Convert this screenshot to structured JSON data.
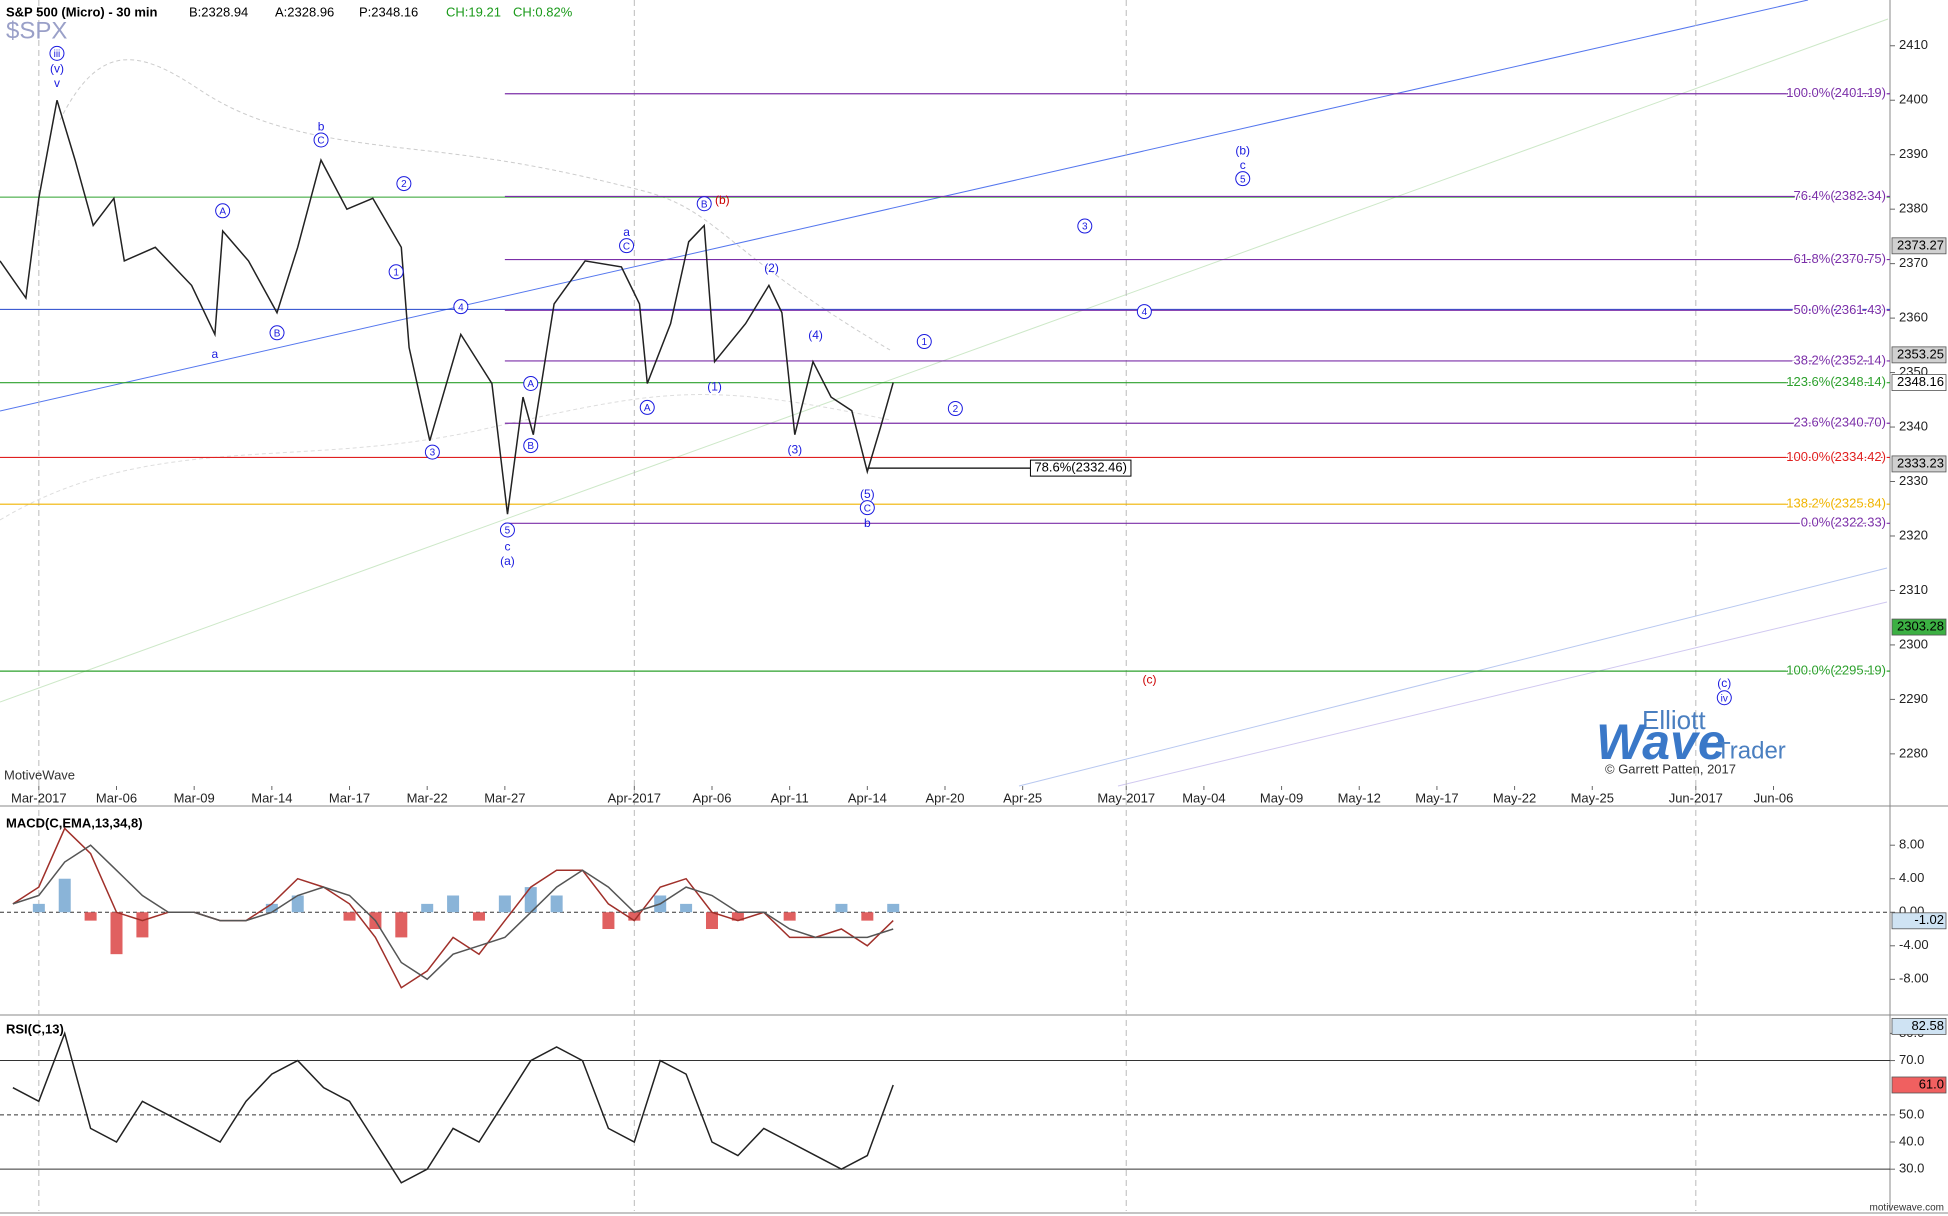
{
  "chart_data": [
    {
      "type": "price",
      "title": "S&P 500 (Micro) - 30 min",
      "subtitle": "$SPX",
      "quote": [
        {
          "text": "B:2328.94",
          "color": "#000000"
        },
        {
          "text": "A:2328.96",
          "color": "#000000"
        },
        {
          "text": "P:2348.16",
          "color": "#000000"
        },
        {
          "text": "CH:19.21",
          "color": "#1a9a1a"
        },
        {
          "text": "CH:0.82%",
          "color": "#1a9a1a"
        }
      ],
      "platform": "MotiveWave",
      "xlim": [
        -1.5,
        71.5
      ],
      "xticks": [
        {
          "value": 0,
          "label": "Mar-2017"
        },
        {
          "value": 3,
          "label": "Mar-06"
        },
        {
          "value": 6,
          "label": "Mar-09"
        },
        {
          "value": 9,
          "label": "Mar-14"
        },
        {
          "value": 12,
          "label": "Mar-17"
        },
        {
          "value": 15,
          "label": "Mar-22"
        },
        {
          "value": 18,
          "label": "Mar-27"
        },
        {
          "value": 23,
          "label": "Apr-2017"
        },
        {
          "value": 26,
          "label": "Apr-06"
        },
        {
          "value": 29,
          "label": "Apr-11"
        },
        {
          "value": 32,
          "label": "Apr-14"
        },
        {
          "value": 35,
          "label": "Apr-20"
        },
        {
          "value": 38,
          "label": "Apr-25"
        },
        {
          "value": 42,
          "label": "May-2017"
        },
        {
          "value": 45,
          "label": "May-04"
        },
        {
          "value": 48,
          "label": "May-09"
        },
        {
          "value": 51,
          "label": "May-12"
        },
        {
          "value": 54,
          "label": "May-17"
        },
        {
          "value": 57,
          "label": "May-22"
        },
        {
          "value": 60,
          "label": "May-25"
        },
        {
          "value": 64,
          "label": "Jun-2017"
        },
        {
          "value": 67,
          "label": "Jun-06"
        }
      ],
      "ylim": [
        2274.1,
        2418.4
      ],
      "yticks": [
        2280,
        2290,
        2300,
        2310,
        2320,
        2330,
        2340,
        2350,
        2360,
        2370,
        2380,
        2390,
        2400,
        2410
      ],
      "series": [
        {
          "color": "#222222",
          "x": [
            -1.5,
            -0.5,
            0,
            0.7,
            1.4,
            2.1,
            2.9,
            3.3,
            4.5,
            5.9,
            6.8,
            7.1,
            8.1,
            9.2,
            10,
            10.9,
            11.9,
            12.9,
            14,
            14.3,
            15.1,
            16.3,
            17.5,
            18.1,
            18.7,
            19.1,
            19.9,
            21.1,
            22.5,
            23.2,
            23.5,
            24.4,
            25.1,
            25.7,
            26.1,
            27.3,
            28.2,
            28.7,
            29.2,
            29.9,
            30.6,
            31.4,
            32,
            32.5,
            33
          ],
          "values": [
            2370.5,
            2363.7,
            2382,
            2400,
            2389,
            2377,
            2382,
            2370.5,
            2373,
            2366,
            2357,
            2376,
            2370.5,
            2361,
            2373,
            2389,
            2380,
            2382,
            2373,
            2354.6,
            2337.5,
            2357,
            2348,
            2324,
            2345.5,
            2338.6,
            2362.6,
            2370.5,
            2369.4,
            2362.6,
            2348,
            2359,
            2374,
            2377,
            2352,
            2359,
            2366,
            2361,
            2338.6,
            2352,
            2345.5,
            2343,
            2331.8,
            2339.8,
            2348.16
          ]
        }
      ],
      "levels": [
        {
          "label": "100.0%(2401.19)",
          "value": 2401.19,
          "color": "#7b2fa8",
          "x0": 18
        },
        {
          "label": "76.4%(2382.34)",
          "value": 2382.34,
          "color": "#7b2fa8",
          "x0": 18
        },
        {
          "label": "61.8%(2370.75)",
          "value": 2370.75,
          "color": "#7b2fa8",
          "x0": 18
        },
        {
          "label": "50.0%(2361.43)",
          "value": 2361.43,
          "color": "#7b2fa8",
          "x0": 18
        },
        {
          "label": "38.2%(2352.14)",
          "value": 2352.14,
          "color": "#7b2fa8",
          "x0": 18
        },
        {
          "label": "23.6%(2340.70)",
          "value": 2340.7,
          "color": "#7b2fa8",
          "x0": 18
        },
        {
          "label": "0.0%(2322.33)",
          "value": 2322.33,
          "color": "#7b2fa8",
          "x0": 18
        },
        {
          "label": "123.6%(2348.14)",
          "value": 2348.14,
          "color": "#2ca02c"
        },
        {
          "label": "100.0%(2295.19)",
          "value": 2295.19,
          "color": "#2ca02c"
        },
        {
          "label": "100.0%(2334.42)",
          "value": 2334.42,
          "color": "#e02020"
        },
        {
          "label": "138.2%(2325.84)",
          "value": 2325.84,
          "color": "#f0b400"
        },
        {
          "label": "78.6%(2332.46)",
          "value": 2332.46,
          "color": "#000000",
          "x0": 32,
          "x1": 38.3,
          "boxed": true
        }
      ],
      "lines": [
        {
          "value": 2382.2,
          "color": "#2ca02c"
        },
        {
          "value": 2361.6,
          "color": "#2244cc"
        }
      ],
      "markers": [
        {
          "value": 2373.27,
          "color": "#d0d0d0"
        },
        {
          "value": 2353.25,
          "color": "#d0d0d0"
        },
        {
          "value": 2348.16,
          "color": "#ffffff"
        },
        {
          "value": 2333.23,
          "color": "#d0d0d0"
        },
        {
          "value": 2303.28,
          "color": "#3cb043"
        }
      ],
      "annotations": [
        {
          "text": "iii",
          "x": 0.7,
          "y": 2408.6,
          "color": "#1a1adf",
          "circle": true
        },
        {
          "text": "(v)",
          "x": 0.7,
          "y": 2405.9,
          "color": "#1a1adf"
        },
        {
          "text": "v",
          "x": 0.7,
          "y": 2403.2,
          "color": "#1a1adf"
        },
        {
          "text": "A",
          "x": 7.1,
          "y": 2379.7,
          "color": "#1a1adf",
          "circle": true
        },
        {
          "text": "a",
          "x": 6.8,
          "y": 2353.4,
          "color": "#1a1adf"
        },
        {
          "text": "B",
          "x": 9.2,
          "y": 2357.3,
          "color": "#1a1adf",
          "circle": true
        },
        {
          "text": "b",
          "x": 10.9,
          "y": 2395.2,
          "color": "#1a1adf"
        },
        {
          "text": "C",
          "x": 10.9,
          "y": 2392.7,
          "color": "#1a1adf",
          "circle": true
        },
        {
          "text": "2",
          "x": 14.1,
          "y": 2384.7,
          "color": "#1a1adf",
          "circle": true
        },
        {
          "text": "1",
          "x": 13.8,
          "y": 2368.5,
          "color": "#1a1adf",
          "circle": true
        },
        {
          "text": "4",
          "x": 16.3,
          "y": 2362.1,
          "color": "#1a1adf",
          "circle": true
        },
        {
          "text": "3",
          "x": 15.2,
          "y": 2335.4,
          "color": "#1a1adf",
          "circle": true
        },
        {
          "text": "A",
          "x": 19.0,
          "y": 2348.0,
          "color": "#1a1adf",
          "circle": true
        },
        {
          "text": "B",
          "x": 19.0,
          "y": 2336.6,
          "color": "#1a1adf",
          "circle": true
        },
        {
          "text": "5",
          "x": 18.1,
          "y": 2321.1,
          "color": "#1a1adf",
          "circle": true
        },
        {
          "text": "c",
          "x": 18.1,
          "y": 2318.1,
          "color": "#1a1adf"
        },
        {
          "text": "(a)",
          "x": 18.1,
          "y": 2315.4,
          "color": "#1a1adf"
        },
        {
          "text": "a",
          "x": 22.7,
          "y": 2375.8,
          "color": "#1a1adf"
        },
        {
          "text": "C",
          "x": 22.7,
          "y": 2373.3,
          "color": "#1a1adf",
          "circle": true
        },
        {
          "text": "A",
          "x": 23.5,
          "y": 2343.6,
          "color": "#1a1adf",
          "circle": true
        },
        {
          "text": "B",
          "x": 25.7,
          "y": 2381.0,
          "color": "#1a1adf",
          "circle": true
        },
        {
          "text": "(b)",
          "x": 26.4,
          "y": 2381.7,
          "color": "#cc0000"
        },
        {
          "text": "(2)",
          "x": 28.3,
          "y": 2369.2,
          "color": "#1a1adf"
        },
        {
          "text": "(1)",
          "x": 26.1,
          "y": 2347.5,
          "color": "#1a1adf"
        },
        {
          "text": "(4)",
          "x": 30.0,
          "y": 2356.9,
          "color": "#1a1adf"
        },
        {
          "text": "(3)",
          "x": 29.2,
          "y": 2335.9,
          "color": "#1a1adf"
        },
        {
          "text": "(5)",
          "x": 32.0,
          "y": 2327.7,
          "color": "#1a1adf"
        },
        {
          "text": "C",
          "x": 32.0,
          "y": 2325.2,
          "color": "#1a1adf",
          "circle": true
        },
        {
          "text": "b",
          "x": 32.0,
          "y": 2322.4,
          "color": "#1a1adf"
        },
        {
          "text": "1",
          "x": 34.2,
          "y": 2355.7,
          "color": "#1a1adf",
          "circle": true
        },
        {
          "text": "2",
          "x": 35.4,
          "y": 2343.4,
          "color": "#1a1adf",
          "circle": true
        },
        {
          "text": "3",
          "x": 40.4,
          "y": 2376.9,
          "color": "#1a1adf",
          "circle": true
        },
        {
          "text": "4",
          "x": 42.7,
          "y": 2361.2,
          "color": "#1a1adf",
          "circle": true
        },
        {
          "text": "(b)",
          "x": 46.5,
          "y": 2390.8,
          "color": "#1a1adf"
        },
        {
          "text": "c",
          "x": 46.5,
          "y": 2388.1,
          "color": "#1a1adf"
        },
        {
          "text": "5",
          "x": 46.5,
          "y": 2385.6,
          "color": "#1a1adf",
          "circle": true
        },
        {
          "text": "(c)",
          "x": 42.9,
          "y": 2293.7,
          "color": "#cc0000"
        },
        {
          "text": "(c)",
          "x": 65.1,
          "y": 2293.0,
          "color": "#1a1adf"
        },
        {
          "text": "iv",
          "x": 65.1,
          "y": 2290.3,
          "color": "#1a1adf",
          "circle": true
        }
      ]
    },
    {
      "type": "macd",
      "title": "MACD(C,EMA,13,34,8)",
      "xlim": [
        -1.5,
        71.5
      ],
      "ylim": [
        -11.9,
        12.2
      ],
      "yticks": [
        {
          "value": 8,
          "label": "8.00"
        },
        {
          "value": 4,
          "label": "4.00"
        },
        {
          "value": 0,
          "label": "0.00"
        },
        {
          "value": -4,
          "label": "-4.00"
        },
        {
          "value": -8,
          "label": "-8.00"
        }
      ],
      "x": [
        -1,
        0,
        1,
        2,
        3,
        4,
        5,
        6,
        7,
        8,
        9,
        10,
        11,
        12,
        13,
        14,
        15,
        16,
        17,
        18,
        19,
        20,
        21,
        22,
        23,
        24,
        25,
        26,
        27,
        28,
        29,
        30,
        31,
        32,
        33
      ],
      "series": [
        {
          "kind": "bar",
          "color": "#8ab4d8",
          "neg_color": "#e06060",
          "values": [
            0,
            1,
            4,
            -1,
            -5,
            -3,
            0,
            0,
            0,
            0,
            1,
            2,
            0,
            -1,
            -2,
            -3,
            1,
            2,
            -1,
            2,
            3,
            2,
            0,
            -2,
            -1,
            2,
            1,
            -2,
            -1,
            0,
            -1,
            0,
            1,
            -1,
            1
          ]
        },
        {
          "kind": "line",
          "color": "#a0302a",
          "values": [
            1,
            3,
            10,
            7,
            0,
            -1,
            0,
            0,
            -1,
            -1,
            1,
            4,
            3,
            1,
            -3,
            -9,
            -7,
            -3,
            -5,
            -1,
            3,
            5,
            5,
            1,
            -1,
            3,
            4,
            0,
            -1,
            0,
            -3,
            -3,
            -2,
            -4,
            -1
          ]
        },
        {
          "kind": "line",
          "color": "#555555",
          "values": [
            1,
            2,
            6,
            8,
            5,
            2,
            0,
            0,
            -1,
            -1,
            0,
            2,
            3,
            2,
            -1,
            -6,
            -8,
            -5,
            -4,
            -3,
            0,
            3,
            5,
            3,
            0,
            1,
            3,
            2,
            0,
            0,
            -2,
            -3,
            -3,
            -3,
            -2
          ]
        }
      ],
      "ref_lines": [
        {
          "value": 0,
          "dash": true
        }
      ],
      "markers": [
        {
          "value": -1.02,
          "color": "#cfe3f3"
        }
      ]
    },
    {
      "type": "rsi",
      "title": "RSI(C,13)",
      "xlim": [
        -1.5,
        71.5
      ],
      "ylim": [
        14.6,
        85.3
      ],
      "yticks": [
        {
          "value": 80,
          "label": "80.0"
        },
        {
          "value": 70,
          "label": "70.0"
        },
        {
          "value": 50,
          "label": "50.0"
        },
        {
          "value": 40,
          "label": "40.0"
        },
        {
          "value": 30,
          "label": "30.0"
        }
      ],
      "x": [
        -1,
        0,
        1,
        2,
        3,
        4,
        5,
        6,
        7,
        8,
        9,
        10,
        11,
        12,
        13,
        14,
        15,
        16,
        17,
        18,
        19,
        20,
        21,
        22,
        23,
        24,
        25,
        26,
        27,
        28,
        29,
        30,
        31,
        32,
        33
      ],
      "series": [
        {
          "kind": "line",
          "color": "#222222",
          "values": [
            60,
            55,
            80,
            45,
            40,
            55,
            50,
            45,
            40,
            55,
            65,
            70,
            60,
            55,
            40,
            25,
            30,
            45,
            40,
            55,
            70,
            75,
            70,
            45,
            40,
            70,
            65,
            40,
            35,
            45,
            40,
            35,
            30,
            35,
            61
          ]
        }
      ],
      "ref_lines": [
        {
          "value": 70,
          "dash": false
        },
        {
          "value": 50,
          "dash": true
        },
        {
          "value": 30,
          "dash": false
        }
      ],
      "markers": [
        {
          "value": 82.58,
          "color": "#cfe3f3"
        },
        {
          "value": 61,
          "label": "61.0",
          "color": "#f06060"
        }
      ]
    }
  ],
  "watermark": {
    "line1": "Elliott",
    "line2": "Wave",
    "line3": "Trader",
    "credit": "© Garrett Patten, 2017"
  },
  "footer": "motivewave.com"
}
